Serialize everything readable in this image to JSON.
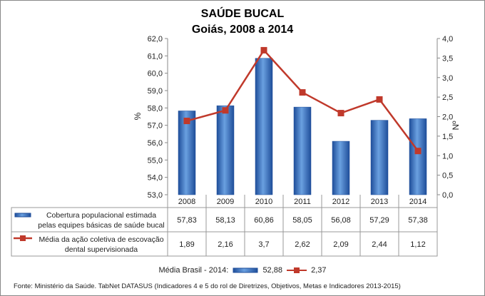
{
  "chart_data": {
    "type": "bar+line",
    "title": "SAÚDE BUCAL",
    "subtitle": "Goiás, 2008 a 2014",
    "categories": [
      "2008",
      "2009",
      "2010",
      "2011",
      "2012",
      "2013",
      "2014"
    ],
    "ylabel_left": "%",
    "ylabel_right": "Nº",
    "ylim_left": [
      53,
      62
    ],
    "ylim_right": [
      0,
      4
    ],
    "yticks_left": [
      "53,0",
      "54,0",
      "55,0",
      "56,0",
      "57,0",
      "58,0",
      "59,0",
      "60,0",
      "61,0",
      "62,0"
    ],
    "yticks_right": [
      "0,0",
      "0,5",
      "1,0",
      "1,5",
      "2,0",
      "2,5",
      "3,0",
      "3,5",
      "4,0"
    ],
    "grid": false,
    "series": [
      {
        "name": "Cobertura populacional estimada pelas equipes básicas de saúde bucal",
        "type": "bar",
        "axis": "left",
        "color": "#3a75c4",
        "values": [
          57.83,
          58.13,
          60.86,
          58.05,
          56.08,
          57.29,
          57.38
        ],
        "labels": [
          "57,83",
          "58,13",
          "60,86",
          "58,05",
          "56,08",
          "57,29",
          "57,38"
        ]
      },
      {
        "name": "Média da ação coletiva de escovação dental supervisionada",
        "type": "line",
        "axis": "right",
        "color": "#c0392b",
        "values": [
          1.89,
          2.16,
          3.7,
          2.62,
          2.09,
          2.44,
          1.12
        ],
        "labels": [
          "1,89",
          "2,16",
          "3,7",
          "2,62",
          "2,09",
          "2,44",
          "1,12"
        ]
      }
    ],
    "series_label_lines": [
      [
        "Cobertura populacional estimada",
        "pelas equipes básicas de saúde bucal"
      ],
      [
        "Média da ação coletiva de escovação",
        "dental supervisionada"
      ]
    ]
  },
  "legend": {
    "label": "Média Brasil - 2014:",
    "bar_value": "52,88",
    "line_value": "2,37"
  },
  "source": "Fonte: Ministério da Saúde. TabNet DATASUS (Indicadores 4 e 5 do rol de Diretrizes, Objetivos, Metas e Indicadores 2013-2015)"
}
